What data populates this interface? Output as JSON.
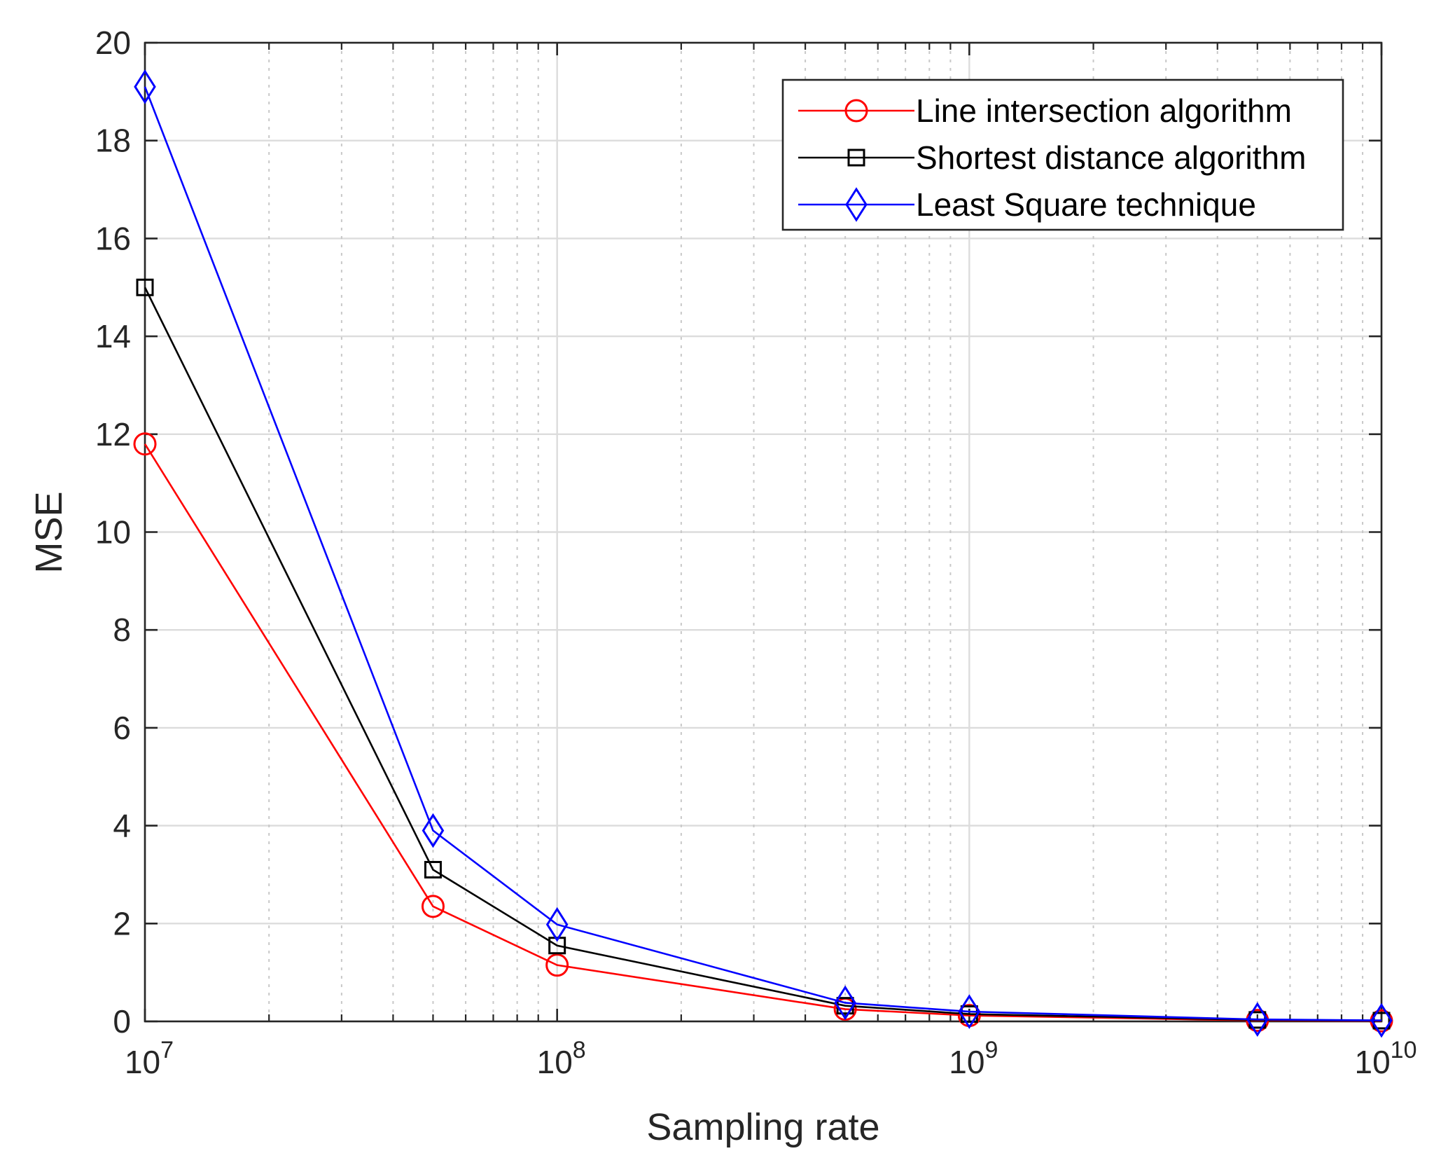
{
  "chart_data": {
    "type": "line",
    "title": "",
    "xlabel": "Sampling rate",
    "ylabel": "MSE",
    "xscale": "log",
    "xlim": [
      10000000,
      10000000000
    ],
    "ylim": [
      0,
      20
    ],
    "yticks": [
      0,
      2,
      4,
      6,
      8,
      10,
      12,
      14,
      16,
      18,
      20
    ],
    "xticks": [
      {
        "value": 10000000,
        "base": "10",
        "exp": "7"
      },
      {
        "value": 100000000,
        "base": "10",
        "exp": "8"
      },
      {
        "value": 1000000000,
        "base": "10",
        "exp": "9"
      },
      {
        "value": 10000000000,
        "base": "10",
        "exp": "10"
      }
    ],
    "grid": true,
    "legend_position": "top-right",
    "x": [
      10000000,
      50000000,
      100000000,
      500000000,
      1000000000,
      5000000000,
      10000000000
    ],
    "series": [
      {
        "name": "Line intersection algorithm",
        "color": "#ff0000",
        "marker": "circle",
        "values": [
          11.8,
          2.35,
          1.15,
          0.25,
          0.12,
          0.02,
          0.01
        ]
      },
      {
        "name": "Shortest distance algorithm",
        "color": "#000000",
        "marker": "square",
        "values": [
          15.0,
          3.1,
          1.55,
          0.32,
          0.15,
          0.03,
          0.015
        ]
      },
      {
        "name": "Least Square technique",
        "color": "#0000ff",
        "marker": "diamond",
        "values": [
          19.1,
          3.9,
          1.98,
          0.38,
          0.2,
          0.04,
          0.02
        ]
      }
    ]
  }
}
